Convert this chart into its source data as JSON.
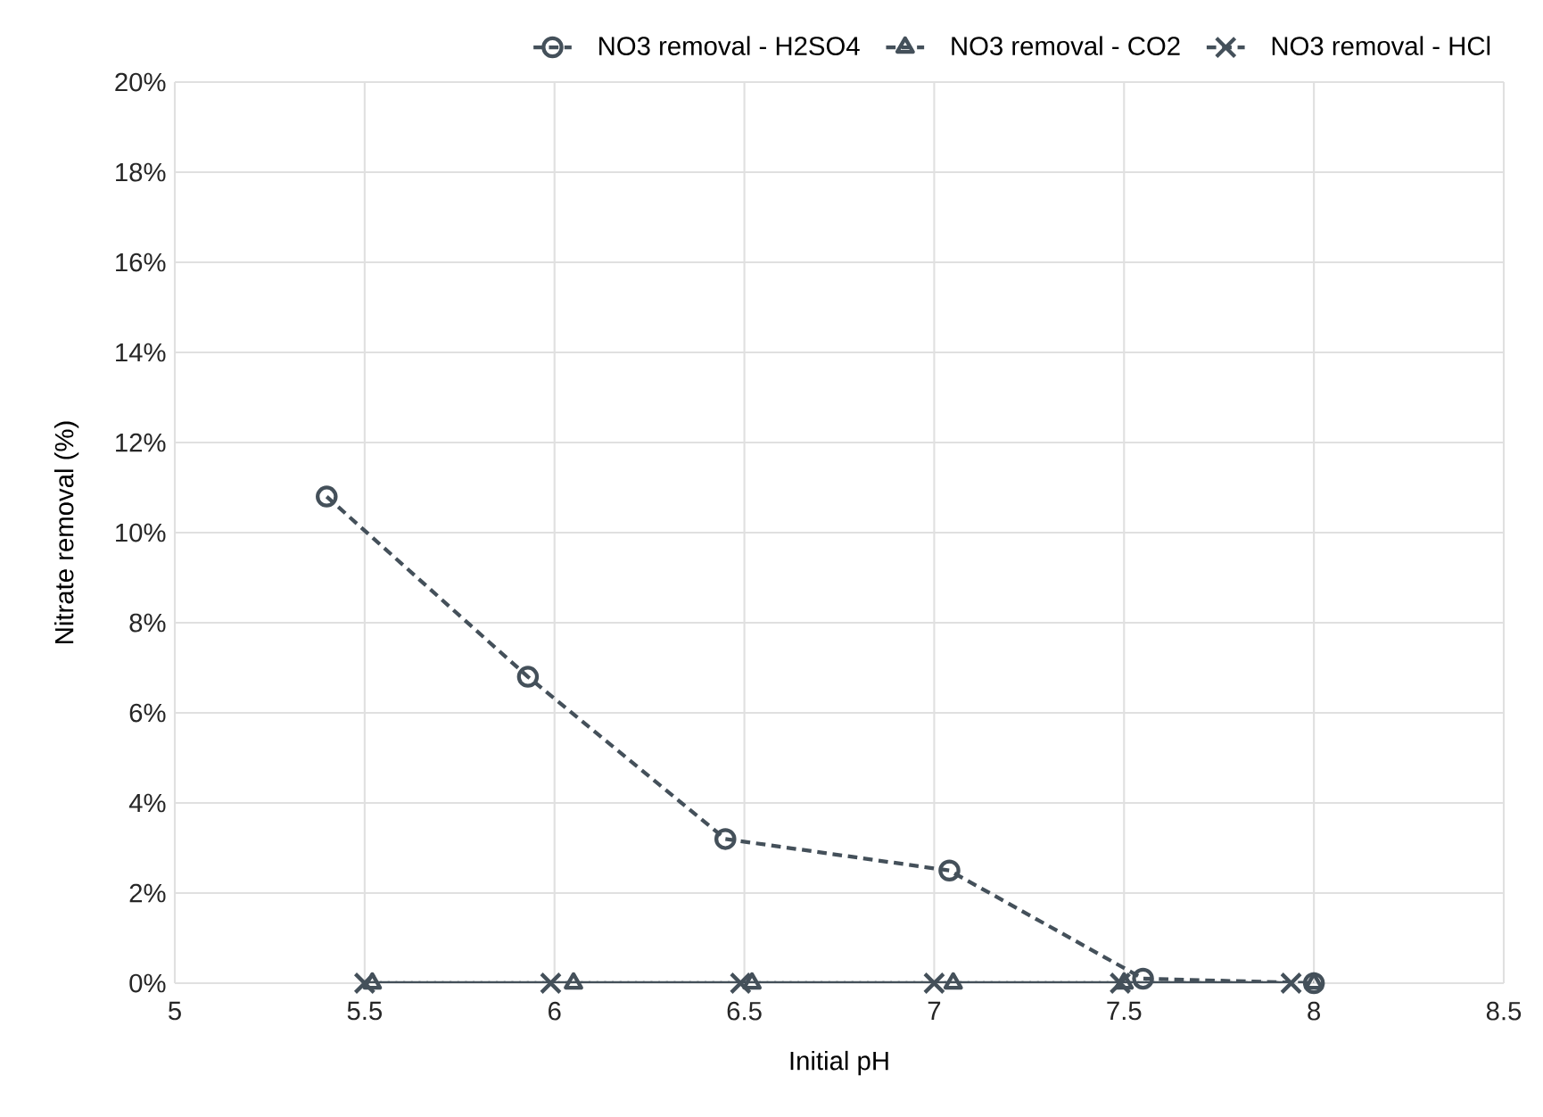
{
  "chart_data": {
    "type": "line",
    "xlabel": "Initial pH",
    "ylabel": "Nitrate removal (%)",
    "xlim": [
      5,
      8.5
    ],
    "xticks": [
      5,
      5.5,
      6,
      6.5,
      7,
      7.5,
      8,
      8.5
    ],
    "ylim": [
      0,
      20
    ],
    "yticks": [
      {
        "value": 0,
        "label": "0%"
      },
      {
        "value": 2,
        "label": "2%"
      },
      {
        "value": 4,
        "label": "4%"
      },
      {
        "value": 6,
        "label": "6%"
      },
      {
        "value": 8,
        "label": "8%"
      },
      {
        "value": 10,
        "label": "10%"
      },
      {
        "value": 12,
        "label": "12%"
      },
      {
        "value": 14,
        "label": "14%"
      },
      {
        "value": 16,
        "label": "16%"
      },
      {
        "value": 18,
        "label": "18%"
      },
      {
        "value": 20,
        "label": "20%"
      }
    ],
    "grid": true,
    "legend": "top right",
    "line_style": "dashed",
    "series": [
      {
        "name": "NO3 removal - H2SO4",
        "color": "#44505a",
        "marker": "circle",
        "x": [
          5.4,
          5.93,
          6.45,
          7.04,
          7.55,
          8.0
        ],
        "values": [
          10.8,
          6.8,
          3.2,
          2.5,
          0.1,
          0
        ]
      },
      {
        "name": "NO3 removal - CO2",
        "color": "#44505a",
        "marker": "triangle",
        "x": [
          5.52,
          6.05,
          6.52,
          7.05,
          7.5,
          8.0
        ],
        "values": [
          0,
          0,
          0,
          0,
          0,
          0
        ]
      },
      {
        "name": "NO3 removal - HCl",
        "color": "#44505a",
        "marker": "cross",
        "x": [
          5.5,
          5.99,
          6.49,
          7.0,
          7.49,
          7.94
        ],
        "values": [
          0,
          0,
          0,
          0,
          0,
          0
        ]
      }
    ]
  }
}
